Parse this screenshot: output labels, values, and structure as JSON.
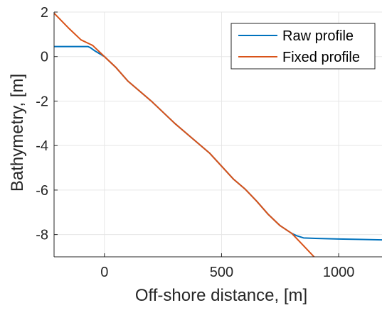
{
  "chart_data": {
    "type": "line",
    "xlabel": "Off-shore distance, [m]",
    "ylabel": "Bathymetry, [m]",
    "xlim": [
      -215,
      1185
    ],
    "ylim": [
      -9,
      2
    ],
    "x_ticks": [
      0,
      500,
      1000
    ],
    "y_ticks": [
      2,
      0,
      -2,
      -4,
      -6,
      -8
    ],
    "x_tick_labels": [
      "0",
      "500",
      "1000"
    ],
    "y_tick_labels": [
      "2",
      "0",
      "-2",
      "-4",
      "-6",
      "-8"
    ],
    "grid": true,
    "legend_position": "top-right",
    "series": [
      {
        "name": "Raw profile",
        "color": "#0072BD",
        "points": [
          [
            -215,
            0.45
          ],
          [
            -70,
            0.45
          ],
          [
            -60,
            0.4
          ],
          [
            -40,
            0.25
          ],
          [
            0,
            0.0
          ],
          [
            50,
            -0.5
          ],
          [
            100,
            -1.1
          ],
          [
            200,
            -2.0
          ],
          [
            300,
            -3.0
          ],
          [
            450,
            -4.35
          ],
          [
            550,
            -5.5
          ],
          [
            600,
            -5.95
          ],
          [
            650,
            -6.5
          ],
          [
            700,
            -7.1
          ],
          [
            750,
            -7.6
          ],
          [
            800,
            -7.95
          ],
          [
            820,
            -8.05
          ],
          [
            850,
            -8.15
          ],
          [
            900,
            -8.17
          ],
          [
            1000,
            -8.2
          ],
          [
            1100,
            -8.22
          ],
          [
            1185,
            -8.24
          ]
        ]
      },
      {
        "name": "Fixed profile",
        "color": "#D95319",
        "points": [
          [
            -215,
            1.95
          ],
          [
            -150,
            1.25
          ],
          [
            -100,
            0.75
          ],
          [
            -50,
            0.5
          ],
          [
            0,
            0.0
          ],
          [
            50,
            -0.5
          ],
          [
            100,
            -1.1
          ],
          [
            200,
            -2.0
          ],
          [
            300,
            -3.0
          ],
          [
            450,
            -4.35
          ],
          [
            550,
            -5.5
          ],
          [
            600,
            -5.95
          ],
          [
            650,
            -6.5
          ],
          [
            700,
            -7.1
          ],
          [
            750,
            -7.6
          ],
          [
            800,
            -7.95
          ],
          [
            850,
            -8.5
          ],
          [
            895,
            -9.0
          ]
        ]
      }
    ]
  }
}
